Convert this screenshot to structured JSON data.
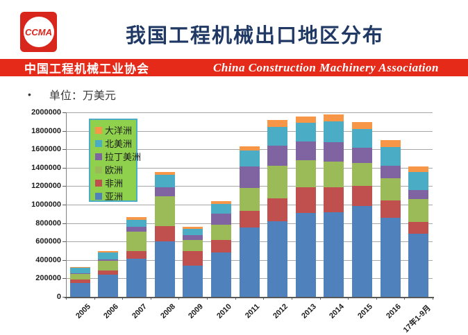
{
  "header": {
    "logo_text": "CCMA",
    "title": "我国工程机械出口地区分布",
    "banner_left": "中国工程机械工业协会",
    "banner_right": "China Construction Machinery Association"
  },
  "unit_note": {
    "bullet": "•",
    "text": "单位：万美元"
  },
  "colors": {
    "banner_red": "#e52a1a",
    "title_blue": "#1f3864",
    "logo_red": "#d9261c",
    "grid": "#a6a6a6",
    "legend_bg": "#8fd04c",
    "legend_border": "#4bacc6"
  },
  "chart_data": {
    "type": "bar",
    "stacked": true,
    "title": "",
    "xlabel": "",
    "ylabel": "",
    "grid": true,
    "ylim": [
      0,
      2000000
    ],
    "ytick_step": 200000,
    "categories": [
      "2005",
      "2006",
      "2007",
      "2008",
      "2009",
      "2010",
      "2011",
      "2012",
      "2013",
      "2014",
      "2015",
      "2016",
      "17年1-9月"
    ],
    "series": [
      {
        "name": "亚洲",
        "color": "#4f81bd",
        "values": [
          150000,
          240000,
          410000,
          600000,
          340000,
          480000,
          750000,
          820000,
          910000,
          920000,
          985000,
          860000,
          685000
        ]
      },
      {
        "name": "非洲",
        "color": "#c0504d",
        "values": [
          35000,
          45000,
          85000,
          170000,
          155000,
          135000,
          185000,
          250000,
          275000,
          270000,
          215000,
          185000,
          125000
        ]
      },
      {
        "name": "欧洲",
        "color": "#9bbb59",
        "values": [
          60000,
          105000,
          210000,
          320000,
          120000,
          170000,
          245000,
          350000,
          300000,
          275000,
          255000,
          240000,
          250000
        ]
      },
      {
        "name": "拉丁美洲",
        "color": "#8064a2",
        "values": [
          10000,
          15000,
          55000,
          95000,
          55000,
          115000,
          235000,
          220000,
          200000,
          210000,
          165000,
          140000,
          100000
        ]
      },
      {
        "name": "北美洲",
        "color": "#4bacc6",
        "values": [
          60000,
          75000,
          75000,
          135000,
          65000,
          110000,
          175000,
          205000,
          200000,
          230000,
          200000,
          200000,
          190000
        ]
      },
      {
        "name": "大洋洲",
        "color": "#f79646",
        "values": [
          10000,
          15000,
          30000,
          30000,
          25000,
          30000,
          45000,
          70000,
          70000,
          75000,
          75000,
          75000,
          65000
        ]
      }
    ],
    "legend": {
      "position": "inside-top-left",
      "items_top_to_bottom": [
        {
          "label": "大洋洲",
          "color": "#f79646"
        },
        {
          "label": "北美洲",
          "color": "#4bacc6"
        },
        {
          "label": "拉丁美洲",
          "color": "#8064a2"
        },
        {
          "label": "欧洲",
          "color": "#9bbb59"
        },
        {
          "label": "非洲",
          "color": "#c0504d"
        },
        {
          "label": "亚洲",
          "color": "#4f81bd"
        }
      ]
    }
  }
}
